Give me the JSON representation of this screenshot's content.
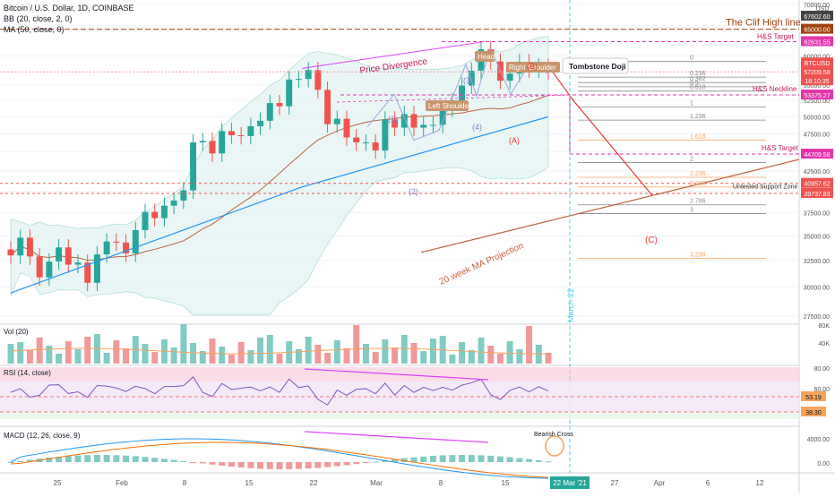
{
  "header": {
    "symbol_line": "Bitcoin / U.S. Dollar, 1D, COINBASE",
    "bb_line": "BB (20, close, 2, 0)",
    "ma_line": "MA (50, close, 0)"
  },
  "annotations": {
    "clif_high": "The Clif High line",
    "price_divergence": "Price Divergence",
    "head": "Head",
    "right_shoulder": "Right Shoulder",
    "left_shoulder": "Left Shoulder",
    "tombstone": "Tombstone Doji",
    "hs_target_top": "H&S Target",
    "hs_neckline": "H&S Neckline",
    "hs_target": "H&S Target",
    "untested_support": "Untested Support Zone",
    "ma20w": "20 week MA Projection",
    "wave_a": "(A)",
    "wave_b": "(B)",
    "wave_c": "(C)",
    "wave_1": "(1)",
    "wave_2": "(2)",
    "wave_3": "(3)",
    "wave_4": "(4)",
    "march22": "March-22",
    "bearish_cross": "Bearish Cross"
  },
  "fib_levels": [
    "0",
    "0.236",
    "0.382",
    "0.5",
    "0.618",
    "1",
    "1.236",
    "1.618",
    "2",
    "2.236",
    "2.382",
    "2.786",
    "3",
    "3.236"
  ],
  "price_axis": {
    "unit": "USD",
    "ticks": [
      "70000.00",
      "65000.00",
      "60000.00",
      "55000.00",
      "52500.00",
      "50000.00",
      "47500.00",
      "45000.00",
      "42500.00",
      "40000.00",
      "37500.00",
      "35000.00",
      "32500.00",
      "30000.00",
      "27500.00"
    ],
    "labels": [
      {
        "text": "67602.60",
        "color": "#444444"
      },
      {
        "text": "65000.00",
        "color": "#a0410d"
      },
      {
        "text": "62631.55",
        "color": "#e535ab"
      },
      {
        "text": "BTCUSD",
        "color": "#ef5350"
      },
      {
        "text": "57209.58",
        "color": "#ef5350"
      },
      {
        "text": "18:10:35",
        "color": "#ef5350"
      },
      {
        "text": "53375.27",
        "color": "#e535ab"
      },
      {
        "text": "44709.58",
        "color": "#e535ab"
      },
      {
        "text": "40957.62",
        "color": "#ef5350"
      },
      {
        "text": "39737.83",
        "color": "#ef5350"
      }
    ]
  },
  "vol_panel": {
    "title": "Vol (20)",
    "ticks": [
      "80K",
      "40K"
    ]
  },
  "rsi_panel": {
    "title": "RSI (14, close)",
    "ticks": [
      "80.00",
      "60.00"
    ],
    "labels": [
      "53.19",
      "38.30"
    ]
  },
  "macd_panel": {
    "title": "MACD (12, 26, close, 9)",
    "ticks": [
      "4000.00",
      "0.00"
    ]
  },
  "time_axis": {
    "ticks": [
      "25",
      "Feb",
      "8",
      "15",
      "22",
      "Mar",
      "8",
      "15",
      "27",
      "Apr",
      "6",
      "12"
    ],
    "highlight": "22 Mar '21"
  },
  "colors": {
    "up": "#26a69a",
    "down": "#ef5350",
    "bb": "#b2dfdb",
    "ma50": "#2196f3",
    "divergence": "#e040fb",
    "clif": "#a0410d"
  },
  "chart_data": {
    "type": "candlestick",
    "title": "Bitcoin / U.S. Dollar, 1D, COINBASE",
    "ylabel": "USD",
    "y_range": [
      27000,
      70000
    ],
    "x_range": [
      "2021-01-20",
      "2021-04-15"
    ],
    "levels": {
      "clif_high": 65000,
      "hs_target_top": 62631.55,
      "last_price": 57209.58,
      "hs_neckline": 53375.27,
      "hs_target": 44709.58,
      "untested_support_top": 40957.62,
      "untested_support_bottom": 39737.83,
      "high_marker": 67602.6
    },
    "candles_close": [
      33000,
      34800,
      32900,
      30900,
      32400,
      33800,
      32100,
      32300,
      30400,
      33100,
      34400,
      34300,
      33200,
      35600,
      37600,
      36900,
      38300,
      38900,
      40100,
      46300,
      46500,
      44800,
      47900,
      47300,
      47200,
      48600,
      49400,
      52100,
      51600,
      55900,
      56000,
      57500,
      54200,
      48900,
      49700,
      47000,
      46300,
      46300,
      45200,
      49600,
      48400,
      50400,
      48400,
      48800,
      48800,
      51200,
      52400,
      54900,
      57400,
      61200,
      59000,
      55700,
      56900,
      58900,
      57600,
      58100,
      57300
    ],
    "ma50": [
      {
        "x": "2021-01-20",
        "y": 29500
      },
      {
        "x": "2021-02-22",
        "y": 40500
      },
      {
        "x": "2021-03-08",
        "y": 45000
      },
      {
        "x": "2021-03-22",
        "y": 50000
      }
    ],
    "ma20w_projection": [
      {
        "x": "2021-03-08",
        "y": 36000
      },
      {
        "x": "2021-04-15",
        "y": 44000
      }
    ],
    "rsi": {
      "last": 53.19,
      "levels": [
        80,
        38.3
      ]
    },
    "macd": {
      "annotation": "Bearish Cross"
    }
  }
}
